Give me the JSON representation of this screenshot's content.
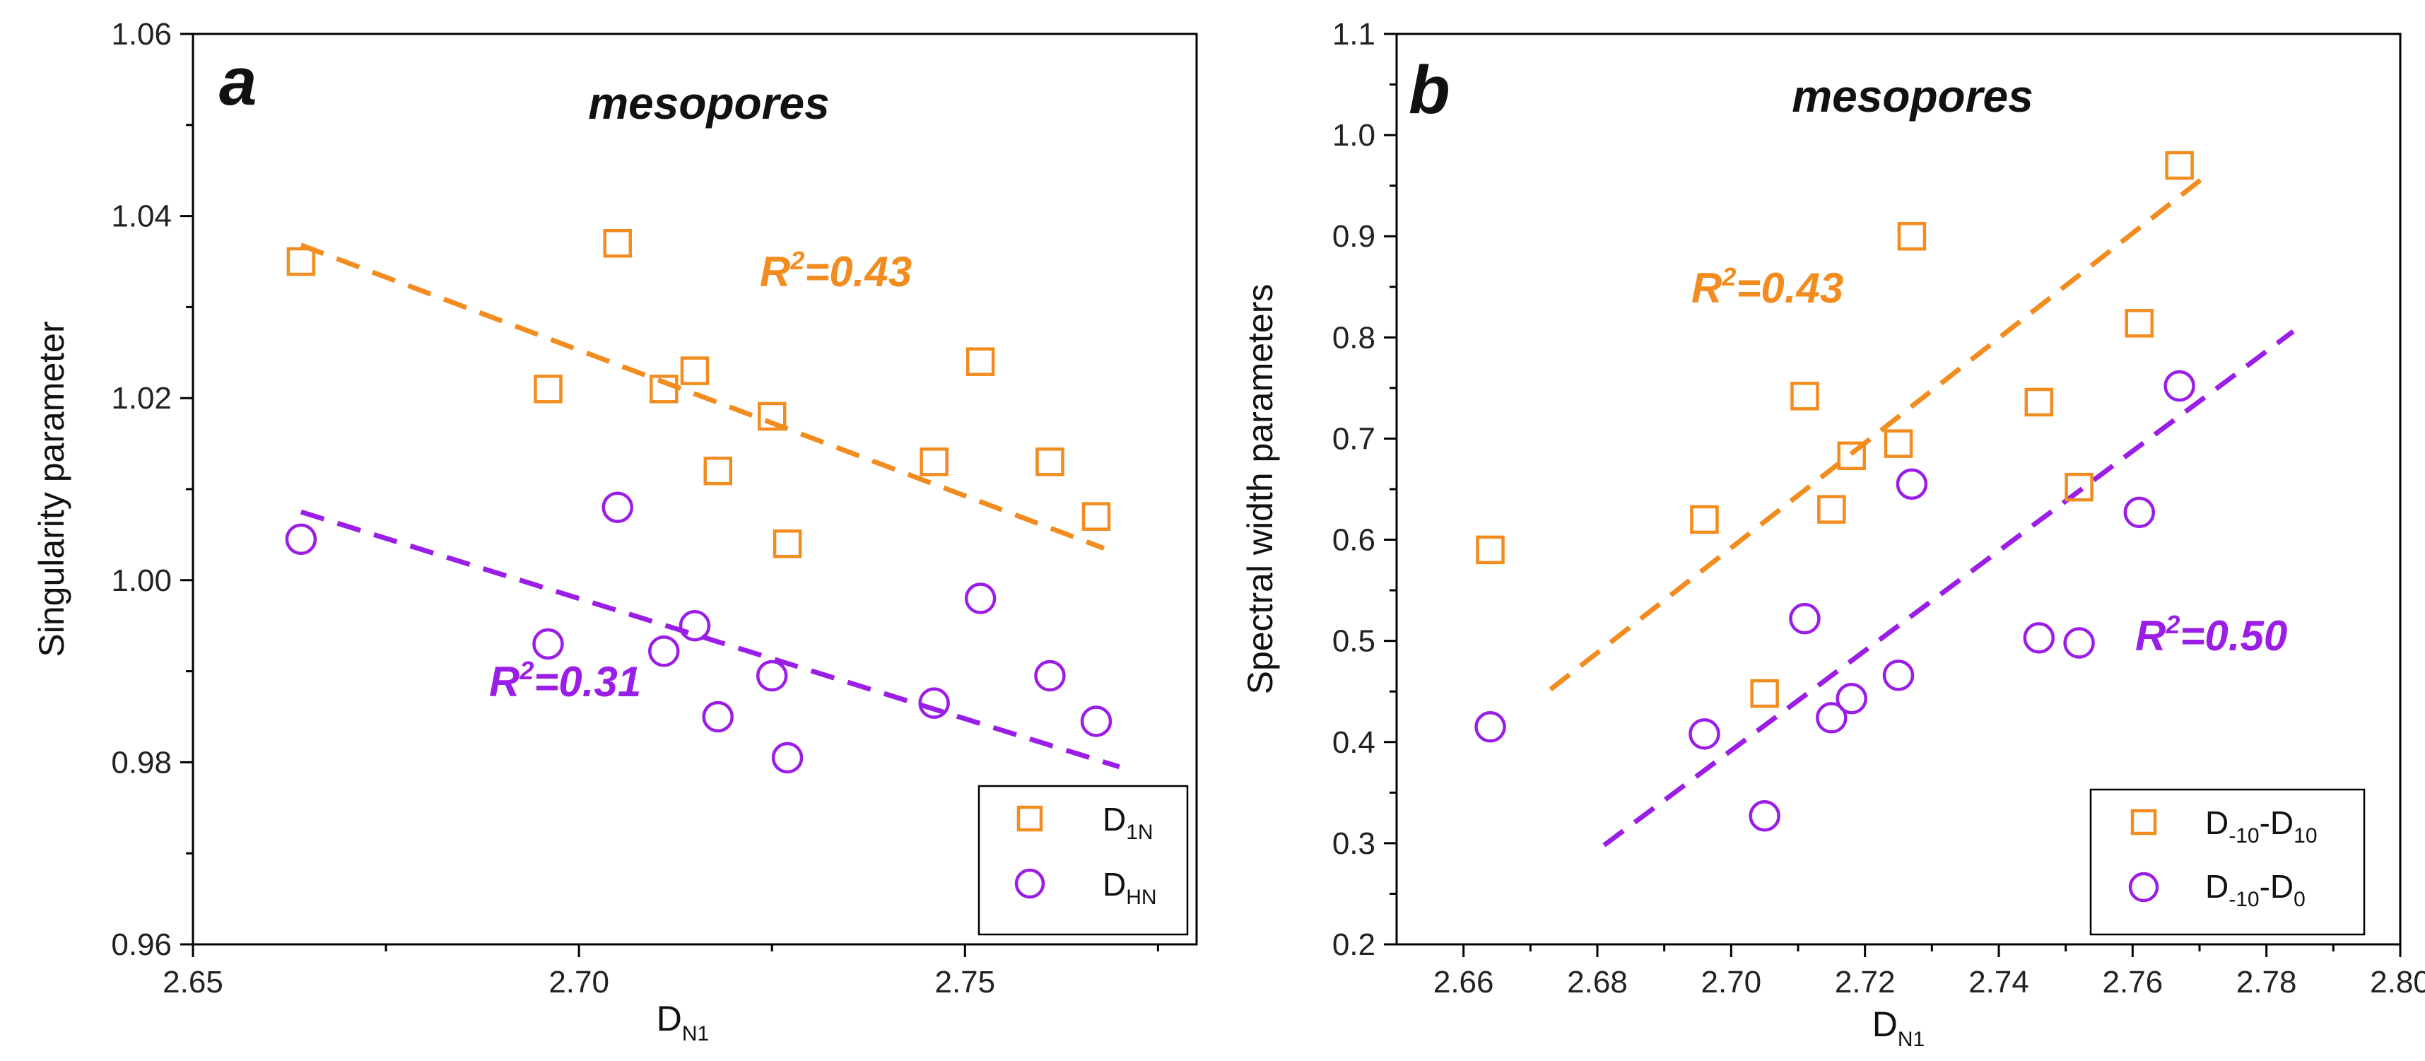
{
  "chart_data": [
    {
      "type": "scatter",
      "panel": "a",
      "subtitle": "mesopores",
      "xlabel": "D",
      "xlabel_sub": "N1",
      "ylabel": "Singularity parameter",
      "xlim": [
        2.65,
        2.78
      ],
      "ylim": [
        0.96,
        1.06
      ],
      "xticks": [
        "2.65",
        "2.70",
        "2.75"
      ],
      "xtick_values": [
        2.65,
        2.7,
        2.75
      ],
      "yticks": [
        "0.96",
        "0.98",
        "1.00",
        "1.02",
        "1.04",
        "1.06"
      ],
      "ytick_values": [
        0.96,
        0.98,
        1.0,
        1.02,
        1.04,
        1.06
      ],
      "series": [
        {
          "name": "D1N",
          "legend_main": "D",
          "legend_sub": "1N",
          "marker": "square",
          "color": "#F28C1E",
          "x": [
            2.664,
            2.696,
            2.705,
            2.711,
            2.715,
            2.718,
            2.725,
            2.727,
            2.746,
            2.752,
            2.761,
            2.767
          ],
          "y": [
            1.035,
            1.021,
            1.037,
            1.021,
            1.023,
            1.012,
            1.018,
            1.004,
            1.013,
            1.024,
            1.013,
            1.007
          ],
          "fit": {
            "x": [
              2.664,
              2.768
            ],
            "y": [
              1.0368,
              1.0035
            ]
          },
          "r2_main": "R",
          "r2_sup": "2",
          "r2_rest": "=0.43"
        },
        {
          "name": "DHN",
          "legend_main": "D",
          "legend_sub": "HN",
          "marker": "circle",
          "color": "#9B1EE6",
          "x": [
            2.664,
            2.696,
            2.705,
            2.711,
            2.715,
            2.718,
            2.725,
            2.727,
            2.746,
            2.752,
            2.761,
            2.767
          ],
          "y": [
            1.0045,
            0.993,
            1.008,
            0.9922,
            0.995,
            0.985,
            0.9895,
            0.9805,
            0.9865,
            0.998,
            0.9895,
            0.9845
          ],
          "fit": {
            "x": [
              2.664,
              2.77
            ],
            "y": [
              1.0075,
              0.9795
            ]
          },
          "r2_main": "R",
          "r2_sup": "2",
          "r2_rest": "=0.31"
        }
      ]
    },
    {
      "type": "scatter",
      "panel": "b",
      "subtitle": "mesopores",
      "xlabel": "D",
      "xlabel_sub": "N1",
      "ylabel": "Spectral width parameters",
      "xlim": [
        2.65,
        2.8
      ],
      "ylim": [
        0.2,
        1.1
      ],
      "xticks": [
        "2.66",
        "2.68",
        "2.70",
        "2.72",
        "2.74",
        "2.76",
        "2.78",
        "2.80"
      ],
      "xtick_values": [
        2.66,
        2.68,
        2.7,
        2.72,
        2.74,
        2.76,
        2.78,
        2.8
      ],
      "yticks": [
        "0.2",
        "0.3",
        "0.4",
        "0.5",
        "0.6",
        "0.7",
        "0.8",
        "0.9",
        "1.0",
        "1.1"
      ],
      "ytick_values": [
        0.2,
        0.3,
        0.4,
        0.5,
        0.6,
        0.7,
        0.8,
        0.9,
        1.0,
        1.1
      ],
      "series": [
        {
          "name": "D-10-D10",
          "legend_parts": [
            "D",
            "-10",
            "-D",
            "10"
          ],
          "marker": "square",
          "color": "#F28C1E",
          "x": [
            2.664,
            2.696,
            2.705,
            2.711,
            2.715,
            2.718,
            2.725,
            2.727,
            2.746,
            2.752,
            2.761,
            2.767
          ],
          "y": [
            0.59,
            0.62,
            0.448,
            0.742,
            0.63,
            0.683,
            0.695,
            0.9,
            0.736,
            0.652,
            0.814,
            0.97
          ],
          "fit": {
            "x": [
              2.673,
              2.771
            ],
            "y": [
              0.452,
              0.96
            ]
          },
          "r2_main": "R",
          "r2_sup": "2",
          "r2_rest": "=0.43"
        },
        {
          "name": "D-10-D0",
          "legend_parts": [
            "D",
            "-10",
            "-D",
            "0"
          ],
          "marker": "circle",
          "color": "#9B1EE6",
          "x": [
            2.664,
            2.696,
            2.705,
            2.711,
            2.715,
            2.718,
            2.725,
            2.727,
            2.746,
            2.752,
            2.761,
            2.767
          ],
          "y": [
            0.415,
            0.408,
            0.327,
            0.522,
            0.424,
            0.443,
            0.466,
            0.655,
            0.503,
            0.498,
            0.627,
            0.752
          ],
          "fit": {
            "x": [
              2.681,
              2.784
            ],
            "y": [
              0.298,
              0.806
            ]
          },
          "r2_main": "R",
          "r2_sup": "2",
          "r2_rest": "=0.50"
        }
      ]
    }
  ]
}
